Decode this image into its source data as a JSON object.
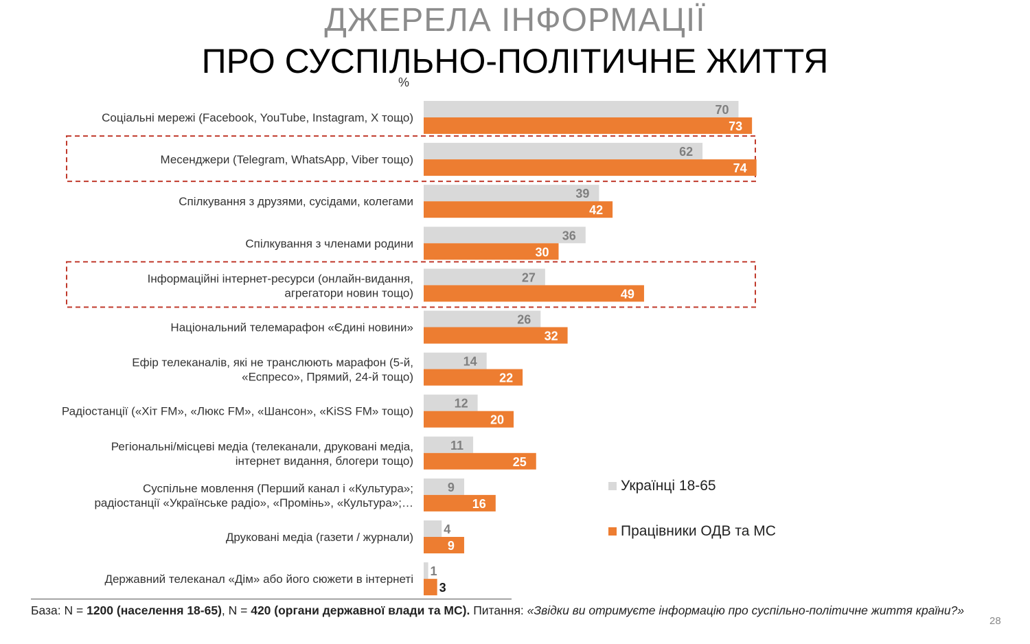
{
  "title_line1": "ДЖЕРЕЛА ІНФОРМАЦІЇ",
  "title_line2": "ПРО СУСПІЛЬНО-ПОЛІТИЧНЕ ЖИТТЯ",
  "unit": "%",
  "colors": {
    "series1": "#d9d9d9",
    "series2": "#ed7d31",
    "highlight": "#c0392b",
    "series1_text": "#7f7f7f",
    "series2_text": "#ffffff"
  },
  "legend": [
    "Українці 18-65",
    "Працівники ОДВ та МС"
  ],
  "chart_data": {
    "type": "bar",
    "orientation": "horizontal",
    "categories": [
      [
        "Соціальні мережі (Facebook, YouTube, Instagram, X тощо)"
      ],
      [
        "Месенджери (Telegram, WhatsApp, Viber тощо)"
      ],
      [
        "Спілкування з друзями, сусідами, колегами"
      ],
      [
        "Спілкування з членами родини"
      ],
      [
        "Інформаційні інтернет-ресурси (онлайн-видання,",
        "агрегатори новин тощо)"
      ],
      [
        "Національний телемарафон «Єдині новини»"
      ],
      [
        "Ефір телеканалів, які не транслюють марафон (5-й,",
        "«Еспресо», Прямий, 24-й тощо)"
      ],
      [
        "Радіостанції («Хіт FM», «Люкс FM», «Шансон», «KiSS FM» тощо)"
      ],
      [
        "Регіональні/місцеві медіа (телеканали, друковані медіа,",
        "інтернет видання, блогери тощо)"
      ],
      [
        "Суспільне мовлення (Перший канал і «Культура»;",
        "радіостанції «Українське радіо», «Промінь», «Культура»;…"
      ],
      [
        "Друковані медіа (газети / журнали)"
      ],
      [
        "Державний телеканал «Дім» або його сюжети в інтернеті"
      ]
    ],
    "series": [
      {
        "name": "Українці 18-65",
        "values": [
          70,
          62,
          39,
          36,
          27,
          26,
          14,
          12,
          11,
          9,
          4,
          1
        ]
      },
      {
        "name": "Працівники ОДВ та МС",
        "values": [
          73,
          74,
          42,
          30,
          49,
          32,
          22,
          20,
          25,
          16,
          9,
          3
        ]
      }
    ],
    "highlighted_categories": [
      1,
      4
    ],
    "xlim": [
      0,
      100
    ]
  },
  "footnote": {
    "base_prefix": "База: N = ",
    "base_n1": "1200 (населення 18-65)",
    "base_mid": ", N = ",
    "base_n2": "420 (органи державної влади та МС).",
    "question_prefix": " Питання: ",
    "question": "«Звідки ви отримуєте інформацію про суспільно-політичне життя країни?»"
  },
  "page_number": "28"
}
